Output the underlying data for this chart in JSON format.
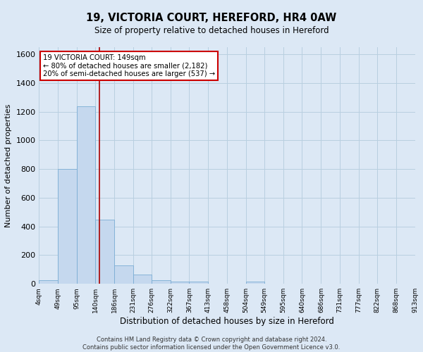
{
  "title1": "19, VICTORIA COURT, HEREFORD, HR4 0AW",
  "title2": "Size of property relative to detached houses in Hereford",
  "xlabel": "Distribution of detached houses by size in Hereford",
  "ylabel": "Number of detached properties",
  "footer1": "Contains HM Land Registry data © Crown copyright and database right 2024.",
  "footer2": "Contains public sector information licensed under the Open Government Licence v3.0.",
  "annotation_line1": "19 VICTORIA COURT: 149sqm",
  "annotation_line2": "← 80% of detached houses are smaller (2,182)",
  "annotation_line3": "20% of semi-detached houses are larger (537) →",
  "bar_edges": [
    4,
    49,
    95,
    140,
    186,
    231,
    276,
    322,
    367,
    413,
    458,
    504,
    549,
    595,
    640,
    686,
    731,
    777,
    822,
    868,
    913
  ],
  "bar_heights": [
    25,
    800,
    1240,
    450,
    130,
    65,
    25,
    15,
    15,
    0,
    0,
    15,
    0,
    0,
    0,
    0,
    0,
    0,
    0,
    0
  ],
  "bar_color": "#c5d8ee",
  "bar_edgecolor": "#7aadd4",
  "vline_x": 149,
  "vline_color": "#aa0000",
  "ylim": [
    0,
    1650
  ],
  "xlim_left": 4,
  "xlim_right": 913,
  "bg_color": "#dce8f5",
  "plot_bg_color": "#dce8f5",
  "grid_color": "#b8cfe0",
  "annotation_box_color": "white",
  "annotation_box_edge": "#cc0000",
  "yticks": [
    0,
    200,
    400,
    600,
    800,
    1000,
    1200,
    1400,
    1600
  ]
}
